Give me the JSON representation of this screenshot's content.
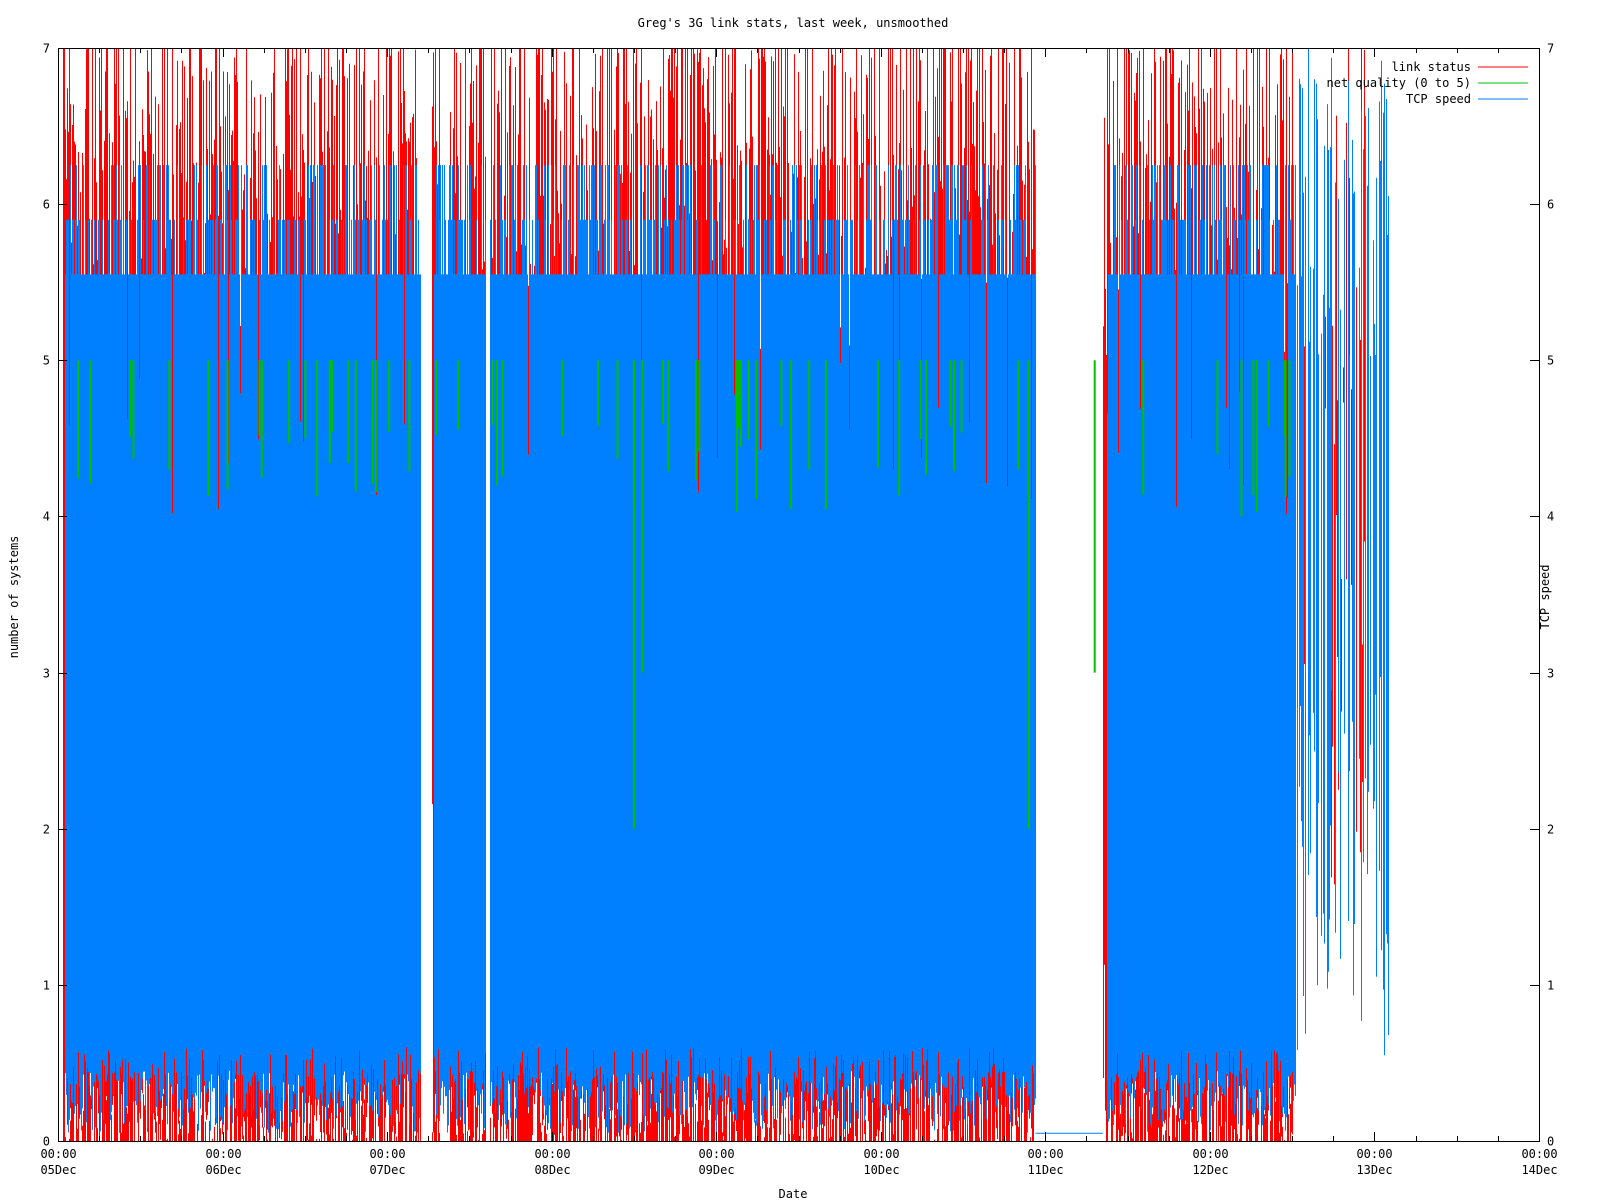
{
  "chart_data": {
    "type": "line",
    "title": "Greg's 3G link stats, last week, unsmoothed",
    "xlabel": "Date",
    "ylabel": "number of systems",
    "y2label": "TCP speed",
    "xlim": [
      "2009-12-05 00:00",
      "2009-12-14 00:00"
    ],
    "ylim": [
      0,
      7
    ],
    "y2lim": [
      0,
      7
    ],
    "x_ticks": [
      {
        "time": "00:00",
        "date": "05Dec"
      },
      {
        "time": "00:00",
        "date": "06Dec"
      },
      {
        "time": "00:00",
        "date": "07Dec"
      },
      {
        "time": "00:00",
        "date": "08Dec"
      },
      {
        "time": "00:00",
        "date": "09Dec"
      },
      {
        "time": "00:00",
        "date": "10Dec"
      },
      {
        "time": "00:00",
        "date": "11Dec"
      },
      {
        "time": "00:00",
        "date": "12Dec"
      },
      {
        "time": "00:00",
        "date": "13Dec"
      },
      {
        "time": "00:00",
        "date": "14Dec"
      }
    ],
    "y_ticks": [
      "0",
      "1",
      "2",
      "3",
      "4",
      "5",
      "6",
      "7"
    ],
    "y2_ticks": [
      "0",
      "1",
      "2",
      "3",
      "4",
      "5",
      "6",
      "7"
    ],
    "legend_position": "top-right",
    "grid": false,
    "series": [
      {
        "name": "link status",
        "color": "#ff0000",
        "description": "dense noisy signal spanning ~0 to 7",
        "active_ranges_days": [
          [
            0.05,
            2.2
          ],
          [
            2.25,
            2.55
          ],
          [
            2.6,
            5.9
          ],
          [
            6.35,
            7.45
          ],
          [
            7.55,
            7.95
          ]
        ],
        "typical_range": [
          0,
          7
        ]
      },
      {
        "name": "net-qual",
        "label": "net quality (0 to 5)",
        "color": "#00c000",
        "description": "mostly between 4 and 5, drops to 2-3 around 08Dec 12:00 and 11Dec",
        "typical_range": [
          4,
          5
        ]
      },
      {
        "name": "TCP speed",
        "color": "#0080ff",
        "description": "dense fill from ~0.1 to ~5.9, spikes to 6.25; gaps around 08Dec 06:00 and 11Dec 00:00-08:00",
        "typical_range": [
          0.1,
          5.9
        ]
      }
    ]
  },
  "legend": {
    "items": [
      {
        "label": "link status",
        "color": "#ff0000"
      },
      {
        "label": "net quality (0 to 5)",
        "color": "#00c000"
      },
      {
        "label": "TCP speed",
        "color": "#0080ff"
      }
    ]
  }
}
